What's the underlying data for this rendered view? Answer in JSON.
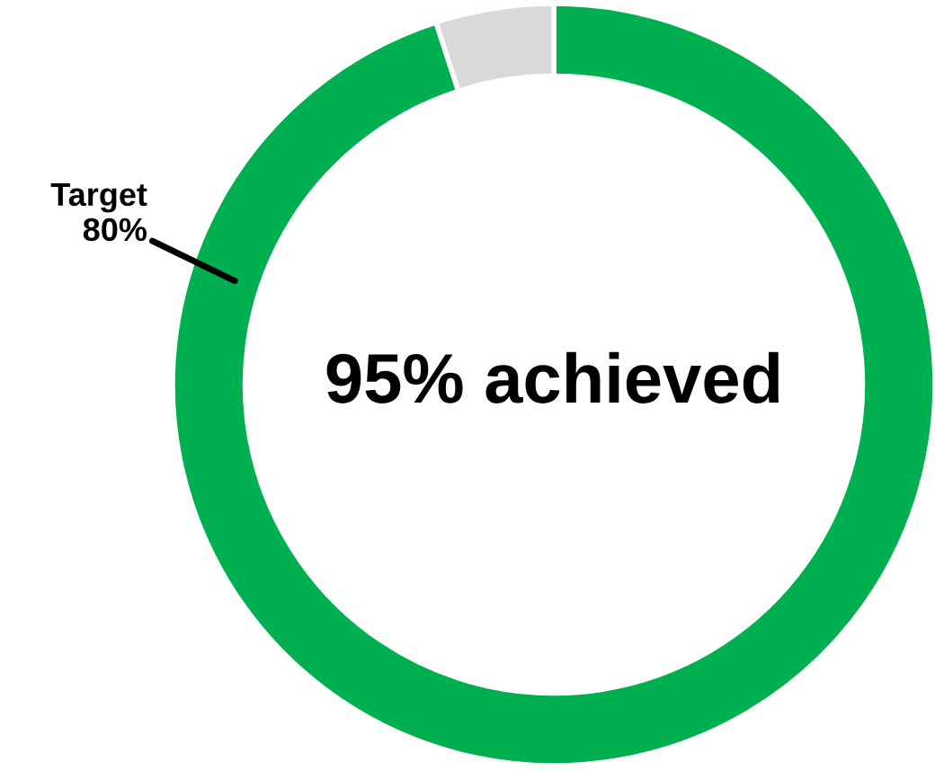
{
  "chart_data": {
    "type": "donut",
    "categories": [
      null,
      null
    ],
    "values": [
      95,
      5
    ],
    "colors": [
      "#00b050",
      "#d9d9d9"
    ],
    "annotations": [
      "95% achieved",
      "Target\n80%"
    ]
  }
}
